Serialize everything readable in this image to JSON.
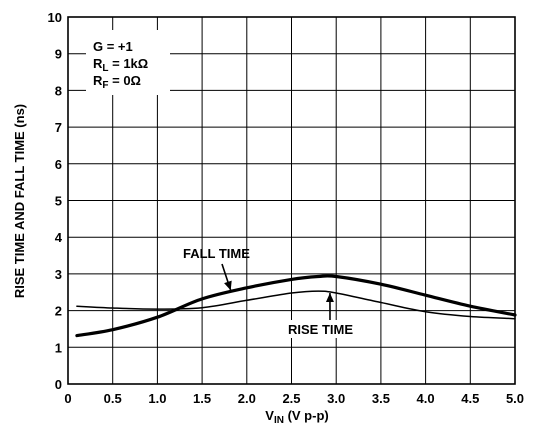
{
  "chart_data": {
    "type": "line",
    "xlabel": {
      "main": "V",
      "sub": "IN",
      "rest": " (V p-p)"
    },
    "ylabel": "RISE TIME AND FALL TIME (ns)",
    "xlim": [
      0,
      5.0
    ],
    "ylim": [
      0,
      10
    ],
    "grid": true,
    "x_ticks": [
      0,
      0.5,
      1.0,
      1.5,
      2.0,
      2.5,
      3.0,
      3.5,
      4.0,
      4.5,
      5.0
    ],
    "x_tick_labels": [
      "0",
      "0.5",
      "1.0",
      "1.5",
      "2.0",
      "2.5",
      "3.0",
      "3.5",
      "4.0",
      "4.5",
      "5.0"
    ],
    "y_ticks": [
      0,
      1,
      2,
      3,
      4,
      5,
      6,
      7,
      8,
      9,
      10
    ],
    "y_tick_labels": [
      "0",
      "1",
      "2",
      "3",
      "4",
      "5",
      "6",
      "7",
      "8",
      "9",
      "10"
    ],
    "conditions": [
      {
        "main": "G = +1",
        "sub": "",
        "rest": ""
      },
      {
        "main": "R",
        "sub": "L",
        "rest": " = 1kΩ"
      },
      {
        "main": "R",
        "sub": "F",
        "rest": " = 0Ω"
      }
    ],
    "series": [
      {
        "name": "FALL TIME",
        "x": [
          0.1,
          0.5,
          1.0,
          1.5,
          2.0,
          2.5,
          2.8,
          3.0,
          3.5,
          4.0,
          4.5,
          5.0
        ],
        "y": [
          1.32,
          1.48,
          1.82,
          2.32,
          2.62,
          2.85,
          2.93,
          2.93,
          2.72,
          2.42,
          2.12,
          1.88
        ]
      },
      {
        "name": "RISE TIME",
        "x": [
          0.1,
          0.5,
          1.0,
          1.5,
          2.0,
          2.5,
          2.8,
          3.0,
          3.5,
          4.0,
          4.5,
          5.0
        ],
        "y": [
          2.12,
          2.07,
          2.04,
          2.08,
          2.28,
          2.48,
          2.53,
          2.48,
          2.22,
          1.97,
          1.84,
          1.78
        ]
      }
    ]
  }
}
